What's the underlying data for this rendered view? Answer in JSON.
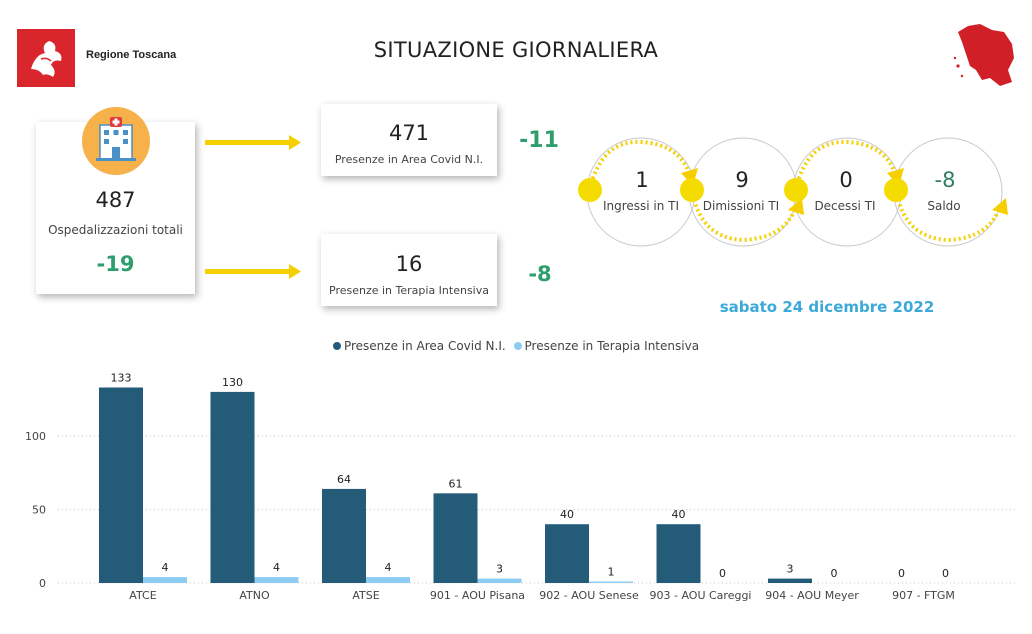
{
  "header": {
    "brand": "Regione Toscana",
    "title": "SITUAZIONE GIORNALIERA"
  },
  "summary": {
    "total": {
      "value": "487",
      "label": "Ospedalizzazioni totali",
      "delta": "-19"
    },
    "covid_area": {
      "value": "471",
      "label": "Presenze in Area Covid N.I.",
      "delta": "-11"
    },
    "intensive_care": {
      "value": "16",
      "label": "Presenze in Terapia Intensiva",
      "delta": "-8"
    }
  },
  "icons": [
    "hospital-icon",
    "logo-icon",
    "tuscany-map-icon",
    "arrow-icon"
  ],
  "flow": [
    {
      "value": "1",
      "label": "Ingressi in TI"
    },
    {
      "value": "9",
      "label": "Dimissioni TI"
    },
    {
      "value": "0",
      "label": "Decessi TI"
    },
    {
      "value": "-8",
      "label": "Saldo"
    }
  ],
  "date": "sabato 24 dicembre 2022",
  "colors": {
    "accent_yellow": "#f5cf00",
    "dark_series": "#245b79",
    "light_series": "#8ccbf2",
    "delta_green": "#2f9e6f",
    "date_blue": "#3ba9d9",
    "brand_red": "#d9262c"
  },
  "chart_data": {
    "type": "bar",
    "categories": [
      "ATCE",
      "ATNO",
      "ATSE",
      "901 - AOU Pisana",
      "902 - AOU Senese",
      "903 - AOU Careggi",
      "904 - AOU Meyer",
      "907 - FTGM"
    ],
    "series": [
      {
        "name": "Presenze in Area Covid N.I.",
        "values": [
          133,
          130,
          64,
          61,
          40,
          40,
          3,
          0
        ]
      },
      {
        "name": "Presenze in Terapia Intensiva",
        "values": [
          4,
          4,
          4,
          3,
          1,
          0,
          0,
          0
        ]
      }
    ],
    "yticks": [
      0,
      50,
      100
    ],
    "ylim": [
      0,
      140
    ],
    "grid": true,
    "legend": "top-center",
    "data_labels": true
  }
}
